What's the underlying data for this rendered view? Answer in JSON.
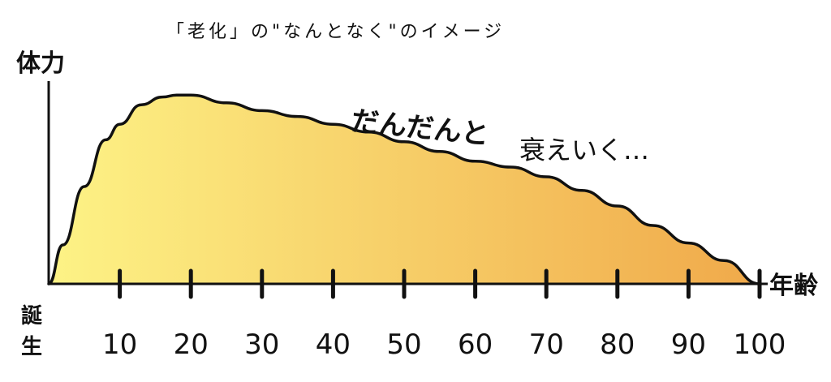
{
  "title": "「老化」の\"なんとなく\"のイメージ",
  "y_axis_label": "体力",
  "x_axis_label": "年齢",
  "origin_label": "誕生",
  "annotation_1": "だんだんと",
  "annotation_2": "衰えいく…",
  "colors": {
    "fill_start": "#fdf386",
    "fill_end": "#f0a94a",
    "stroke": "#111111"
  },
  "chart_data": {
    "type": "area",
    "x": [
      0,
      2,
      5,
      8,
      10,
      13,
      16,
      18,
      20,
      25,
      30,
      35,
      40,
      45,
      50,
      55,
      60,
      65,
      70,
      75,
      80,
      85,
      90,
      95,
      100
    ],
    "y": [
      0,
      20,
      50,
      74,
      82,
      92,
      96,
      97,
      97,
      93,
      89,
      86,
      82,
      78,
      73,
      68,
      63,
      60,
      55,
      48,
      40,
      30,
      21,
      12,
      0
    ],
    "x_ticks": [
      10,
      20,
      30,
      40,
      50,
      60,
      70,
      80,
      90,
      100
    ],
    "x_tick_labels": [
      "10",
      "20",
      "30",
      "40",
      "50",
      "60",
      "70",
      "80",
      "90",
      "100"
    ],
    "xlim": [
      0,
      100
    ],
    "ylim": [
      0,
      100
    ],
    "xlabel": "年齢",
    "ylabel": "体力",
    "grid": false
  }
}
